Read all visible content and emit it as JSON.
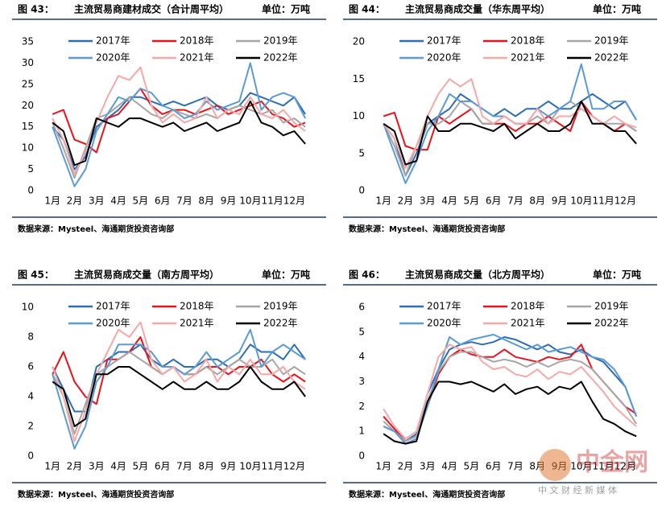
{
  "chart_data": [
    {
      "type": "line",
      "label": "图 43：",
      "title": "主流贸易商建材成交（合计周平均）",
      "unit": "单位：万吨",
      "source": "数据来源：Mysteel、海通期货投资咨询部",
      "x": [
        1,
        1.5,
        2,
        2.5,
        3,
        3.5,
        4,
        4.5,
        5,
        5.5,
        6,
        6.5,
        7,
        7.5,
        8,
        8.5,
        9,
        9.5,
        10,
        10.5,
        11,
        11.5,
        12,
        12.5
      ],
      "xlim": [
        0.7,
        12.9
      ],
      "xticks": [
        {
          "value": 1,
          "label": "1月"
        },
        {
          "value": 2,
          "label": "2月"
        },
        {
          "value": 3,
          "label": "3月"
        },
        {
          "value": 4,
          "label": "4月"
        },
        {
          "value": 5,
          "label": "5月"
        },
        {
          "value": 6,
          "label": "6月"
        },
        {
          "value": 7,
          "label": "7月"
        },
        {
          "value": 8,
          "label": "8月"
        },
        {
          "value": 9,
          "label": "9月"
        },
        {
          "value": 10,
          "label": "10月"
        },
        {
          "value": 11,
          "label": "11月"
        },
        {
          "value": 12,
          "label": "12月"
        }
      ],
      "ylim": [
        0,
        35
      ],
      "yticks": [
        0,
        5,
        10,
        15,
        20,
        25,
        30,
        35
      ],
      "series": [
        {
          "name": "2017年",
          "color": "#2e6db4",
          "values": [
            15,
            12,
            5,
            8,
            15,
            17,
            19,
            22,
            22,
            21,
            20,
            21,
            20,
            21,
            22,
            20,
            19,
            20,
            23,
            22,
            21,
            20,
            22,
            18
          ]
        },
        {
          "name": "2018年",
          "color": "#e8141b",
          "values": [
            18,
            19,
            12,
            11,
            9,
            17,
            18,
            21,
            24,
            20,
            18,
            19,
            19,
            18,
            19,
            20,
            18,
            19,
            20,
            21,
            18,
            17,
            15,
            16
          ]
        },
        {
          "name": "2019年",
          "color": "#a6a6a6",
          "values": [
            16,
            10,
            3,
            10,
            17,
            18,
            20,
            22,
            20,
            18,
            17,
            19,
            18,
            17,
            18,
            17,
            19,
            20,
            19,
            18,
            19,
            16,
            17,
            15
          ]
        },
        {
          "name": "2020年",
          "color": "#5b9bd5",
          "values": [
            15,
            8,
            1,
            5,
            14,
            18,
            22,
            21,
            24,
            23,
            20,
            19,
            17,
            18,
            21,
            19,
            20,
            21,
            30,
            19,
            22,
            23,
            22,
            17
          ]
        },
        {
          "name": "2021年",
          "color": "#f4a8a8",
          "values": [
            17,
            12,
            4,
            9,
            16,
            22,
            27,
            26,
            29,
            20,
            16,
            18,
            16,
            17,
            22,
            17,
            19,
            18,
            22,
            18,
            17,
            19,
            16,
            14
          ]
        },
        {
          "name": "2022年",
          "color": "#000000",
          "values": [
            16,
            14,
            6,
            7,
            17,
            16,
            15,
            17,
            17,
            16,
            15,
            16,
            14,
            15,
            16,
            14,
            15,
            16,
            21,
            16,
            15,
            13,
            14,
            11
          ]
        }
      ]
    },
    {
      "type": "line",
      "label": "图 44：",
      "title": "主流贸易商成交量（华东周平均）",
      "unit": "单位：万吨",
      "source": "数据来源：Mysteel、海通期货投资咨询部",
      "x": [
        1,
        1.5,
        2,
        2.5,
        3,
        3.5,
        4,
        4.5,
        5,
        5.5,
        6,
        6.5,
        7,
        7.5,
        8,
        8.5,
        9,
        9.5,
        10,
        10.5,
        11,
        11.5,
        12,
        12.5
      ],
      "xlim": [
        0.7,
        12.9
      ],
      "xticks": [
        {
          "value": 1,
          "label": "1月"
        },
        {
          "value": 2,
          "label": "2月"
        },
        {
          "value": 3,
          "label": "3月"
        },
        {
          "value": 4,
          "label": "4月"
        },
        {
          "value": 5,
          "label": "5月"
        },
        {
          "value": 6,
          "label": "6月"
        },
        {
          "value": 7,
          "label": "7月"
        },
        {
          "value": 8,
          "label": "8月"
        },
        {
          "value": 9,
          "label": "9月"
        },
        {
          "value": 10,
          "label": "10月"
        },
        {
          "value": 11,
          "label": "11月"
        },
        {
          "value": 12,
          "label": "12月"
        }
      ],
      "ylim": [
        0,
        20
      ],
      "yticks": [
        0,
        5,
        10,
        15,
        20
      ],
      "series": [
        {
          "name": "2017年",
          "color": "#2e6db4",
          "values": [
            9,
            7,
            2,
            5,
            9,
            10,
            11,
            13,
            12,
            11,
            10,
            11,
            10,
            11,
            11,
            12,
            11,
            11,
            12,
            13,
            12,
            11,
            12,
            9.5
          ]
        },
        {
          "name": "2018年",
          "color": "#e8141b",
          "values": [
            10,
            10.5,
            6,
            5.5,
            5.5,
            10,
            9,
            10,
            11,
            9,
            9,
            9,
            8,
            9,
            9,
            10,
            9,
            8,
            12,
            10,
            9,
            8,
            9,
            8
          ]
        },
        {
          "name": "2019年",
          "color": "#a6a6a6",
          "values": [
            9,
            6,
            2,
            6,
            9,
            9,
            10,
            12,
            11,
            9,
            9,
            10,
            9,
            9,
            10,
            9,
            11,
            12,
            11,
            10,
            9,
            9,
            9,
            8
          ]
        },
        {
          "name": "2020年",
          "color": "#5b9bd5",
          "values": [
            9,
            5,
            1,
            4,
            8,
            10,
            13,
            12,
            12,
            11,
            10,
            10,
            9,
            9,
            11,
            10,
            11,
            12,
            17,
            11,
            11,
            12,
            12,
            9.5
          ]
        },
        {
          "name": "2021年",
          "color": "#f4a8a8",
          "values": [
            9,
            7,
            3,
            6,
            10,
            13,
            15,
            14,
            15,
            10,
            9,
            10,
            9,
            9,
            11,
            9,
            10,
            10,
            11,
            10,
            9,
            10,
            9,
            8.5
          ]
        },
        {
          "name": "2022年",
          "color": "#000000",
          "values": [
            9,
            8,
            3.5,
            4,
            10,
            8,
            8,
            9,
            9,
            8.5,
            8,
            9,
            7,
            8,
            9,
            8,
            8,
            9,
            12,
            9,
            9,
            8,
            8,
            6.3
          ]
        }
      ]
    },
    {
      "type": "line",
      "label": "图 45：",
      "title": "主流贸易商成交量（南方周平均）",
      "unit": "单位：万吨",
      "source": "数据来源：Mysteel、海通期货投资咨询部",
      "x": [
        1,
        1.5,
        2,
        2.5,
        3,
        3.5,
        4,
        4.5,
        5,
        5.5,
        6,
        6.5,
        7,
        7.5,
        8,
        8.5,
        9,
        9.5,
        10,
        10.5,
        11,
        11.5,
        12,
        12.5
      ],
      "xlim": [
        0.7,
        12.9
      ],
      "xticks": [
        {
          "value": 1,
          "label": "1月"
        },
        {
          "value": 2,
          "label": "2月"
        },
        {
          "value": 3,
          "label": "3月"
        },
        {
          "value": 4,
          "label": "4月"
        },
        {
          "value": 5,
          "label": "5月"
        },
        {
          "value": 6,
          "label": "6月"
        },
        {
          "value": 7,
          "label": "7月"
        },
        {
          "value": 8,
          "label": "8月"
        },
        {
          "value": 9,
          "label": "9月"
        },
        {
          "value": 10,
          "label": "10月"
        },
        {
          "value": 11,
          "label": "11月"
        },
        {
          "value": 12,
          "label": "12月"
        }
      ],
      "ylim": [
        0,
        10
      ],
      "yticks": [
        0,
        2,
        4,
        6,
        8,
        10
      ],
      "series": [
        {
          "name": "2017年",
          "color": "#2e6db4",
          "values": [
            6,
            4.5,
            3,
            3,
            6,
            6.5,
            7,
            7,
            7.5,
            6.5,
            6,
            6.5,
            6,
            6,
            6.5,
            6.5,
            6,
            6.5,
            7.5,
            7,
            7,
            6.5,
            7.5,
            6.5
          ]
        },
        {
          "name": "2018年",
          "color": "#e8141b",
          "values": [
            5.5,
            7,
            5,
            4,
            3.5,
            6.5,
            6.5,
            7,
            8,
            6,
            5.5,
            6,
            5.5,
            5.5,
            6,
            6,
            5.5,
            6,
            6,
            6.5,
            5.5,
            5,
            5.5,
            5
          ]
        },
        {
          "name": "2019年",
          "color": "#a6a6a6",
          "values": [
            5.5,
            4,
            1.5,
            3.5,
            5.5,
            6,
            6.5,
            7,
            6.5,
            6,
            5.5,
            6,
            5.5,
            5.5,
            6,
            5.5,
            6,
            6.5,
            6,
            6,
            6.5,
            5.5,
            6,
            5.5
          ]
        },
        {
          "name": "2020年",
          "color": "#5b9bd5",
          "values": [
            5.5,
            3,
            0.5,
            2,
            5,
            6,
            7.5,
            7.5,
            7.5,
            7,
            6,
            6,
            5.5,
            6,
            7,
            6,
            6.5,
            7,
            8.5,
            6,
            7,
            7.5,
            7,
            6.5
          ]
        },
        {
          "name": "2021年",
          "color": "#f4a8a8",
          "values": [
            6,
            4,
            1,
            3,
            5.5,
            7,
            8.5,
            8,
            9,
            6.5,
            5.5,
            6,
            5,
            5.5,
            6.5,
            5,
            6,
            5.5,
            6.5,
            5.5,
            5.5,
            6,
            5,
            4.5
          ]
        },
        {
          "name": "2022年",
          "color": "#000000",
          "values": [
            5,
            4.5,
            2,
            2.5,
            5.5,
            5.5,
            6,
            6,
            5.5,
            5,
            4.5,
            5,
            4.5,
            4.5,
            5,
            4.5,
            4.5,
            5,
            6,
            5,
            4.5,
            4.5,
            5,
            4
          ]
        }
      ]
    },
    {
      "type": "line",
      "label": "图 46：",
      "title": "主流贸易商成交量（北方周平均）",
      "unit": "单位：万吨",
      "source": "数据来源：Mysteel、海通期货投资咨询部",
      "x": [
        1,
        1.5,
        2,
        2.5,
        3,
        3.5,
        4,
        4.5,
        5,
        5.5,
        6,
        6.5,
        7,
        7.5,
        8,
        8.5,
        9,
        9.5,
        10,
        10.5,
        11,
        11.5,
        12,
        12.5
      ],
      "xlim": [
        0.7,
        12.9
      ],
      "xticks": [
        {
          "value": 1,
          "label": "1月"
        },
        {
          "value": 2,
          "label": "2月"
        },
        {
          "value": 3,
          "label": "3月"
        },
        {
          "value": 4,
          "label": "4月"
        },
        {
          "value": 5,
          "label": "5月"
        },
        {
          "value": 6,
          "label": "6月"
        },
        {
          "value": 7,
          "label": "7月"
        },
        {
          "value": 8,
          "label": "8月"
        },
        {
          "value": 9,
          "label": "9月"
        },
        {
          "value": 10,
          "label": "10月"
        },
        {
          "value": 11,
          "label": "11月"
        },
        {
          "value": 12,
          "label": "12月"
        }
      ],
      "ylim": [
        0,
        6
      ],
      "yticks": [
        0,
        1,
        2,
        3,
        4,
        5,
        6
      ],
      "series": [
        {
          "name": "2017年",
          "color": "#2e6db4",
          "values": [
            1.2,
            1,
            0.6,
            0.9,
            2.5,
            3.5,
            4.3,
            4.5,
            4.6,
            4.5,
            4.6,
            4.8,
            4.7,
            4.5,
            4.3,
            4.5,
            4.2,
            4.1,
            4.3,
            4,
            3.8,
            3.3,
            2.8,
            1.6
          ]
        },
        {
          "name": "2018年",
          "color": "#e8141b",
          "values": [
            1.6,
            1.1,
            0.6,
            0.8,
            2,
            3.3,
            4,
            4.3,
            4.1,
            4,
            4,
            4.3,
            4,
            3.9,
            3.8,
            4,
            3.9,
            4,
            4.5,
            3.5,
            3,
            2.5,
            2,
            1.7
          ]
        },
        {
          "name": "2019年",
          "color": "#a6a6a6",
          "values": [
            1.4,
            1,
            0.6,
            0.8,
            2.2,
            3.4,
            4,
            4.2,
            4.2,
            4,
            3.8,
            3.9,
            3.8,
            3.6,
            3.8,
            3.6,
            3.8,
            3.9,
            3.8,
            3.5,
            3,
            2.5,
            2,
            1.3
          ]
        },
        {
          "name": "2020年",
          "color": "#5b9bd5",
          "values": [
            1.2,
            1,
            0.5,
            0.7,
            2,
            3.5,
            4.8,
            4.5,
            4.7,
            4.8,
            4.9,
            4.7,
            4.5,
            4.3,
            4.5,
            4.2,
            4.3,
            4.4,
            4.2,
            4,
            3.9,
            3.5,
            2.8,
            1.6
          ]
        },
        {
          "name": "2021年",
          "color": "#f4a8a8",
          "values": [
            1.9,
            1.2,
            0.7,
            1,
            2.5,
            4,
            4.5,
            4.3,
            4.4,
            3.8,
            3.5,
            3.6,
            3.3,
            3.2,
            3.5,
            3.1,
            3.4,
            3.3,
            3.6,
            3.1,
            2.6,
            2,
            1.6,
            1.2
          ]
        },
        {
          "name": "2022年",
          "color": "#000000",
          "values": [
            0.9,
            0.6,
            0.5,
            0.6,
            2.2,
            3,
            3,
            2.9,
            3,
            2.8,
            2.6,
            2.9,
            2.5,
            2.7,
            2.8,
            2.5,
            2.8,
            2.7,
            3,
            2.2,
            1.5,
            1.3,
            1,
            0.8
          ]
        }
      ]
    }
  ],
  "watermark": {
    "name": "中金网",
    "tagline": "中 文 财 经 新 媒 体"
  }
}
